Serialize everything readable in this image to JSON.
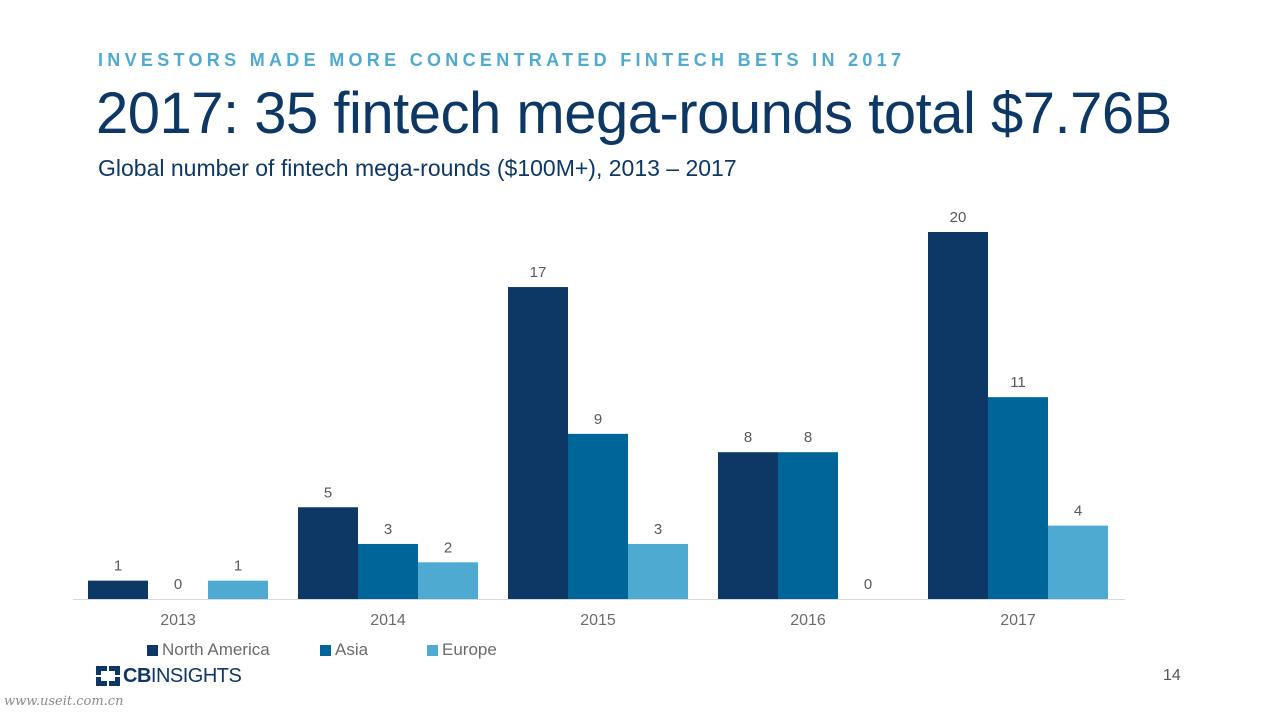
{
  "header": {
    "kicker": "INVESTORS MADE MORE CONCENTRATED FINTECH BETS IN 2017",
    "title": "2017: 35 fintech mega-rounds total $7.76B",
    "subtitle": "Global number of fintech mega-rounds ($100M+), 2013 – 2017"
  },
  "chart_data": {
    "type": "bar",
    "categories": [
      "2013",
      "2014",
      "2015",
      "2016",
      "2017"
    ],
    "series": [
      {
        "name": "North America",
        "color": "#0D3866",
        "values": [
          1,
          5,
          17,
          8,
          20
        ]
      },
      {
        "name": "Asia",
        "color": "#00669A",
        "values": [
          0,
          3,
          9,
          8,
          11
        ]
      },
      {
        "name": "Europe",
        "color": "#4FAAD1",
        "values": [
          1,
          2,
          3,
          0,
          4
        ]
      }
    ],
    "title": "",
    "xlabel": "",
    "ylabel": "",
    "ylim": [
      0,
      20
    ],
    "grid": false,
    "data_labels": true,
    "legend_position": "bottom-left"
  },
  "footer": {
    "logo_bold": "CB",
    "logo_light": "INSIGHTS",
    "page_number": "14",
    "watermark": "www.useit.com.cn"
  }
}
